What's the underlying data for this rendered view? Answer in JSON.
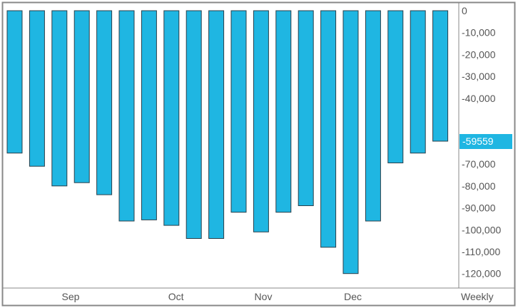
{
  "chart_data": {
    "type": "bar",
    "frequency_label": "Weekly",
    "x_month_labels": [
      "Sep",
      "Oct",
      "Nov",
      "Dec"
    ],
    "y_tick_labels": [
      "0",
      "-10,000",
      "-20,000",
      "-30,000",
      "-40,000",
      "-70,000",
      "-80,000",
      "-90,000",
      "-100,000",
      "-110,000",
      "-120,000"
    ],
    "ylim": [
      -124000,
      0
    ],
    "values": [
      -65000,
      -71000,
      -80000,
      -78500,
      -84000,
      -96000,
      -95500,
      -98000,
      -104000,
      -104000,
      -92000,
      -101000,
      -92000,
      -89000,
      -108000,
      -120000,
      -96000,
      -69500,
      -65000,
      -59559
    ],
    "last_value_label": "-59559",
    "last_value": -59559,
    "colors": {
      "bar_fill": "#1fb6e2",
      "bar_stroke": "#2b3f4a",
      "last_value_badge": "#1fb6e2",
      "frame": "#888888"
    },
    "grid": false
  }
}
